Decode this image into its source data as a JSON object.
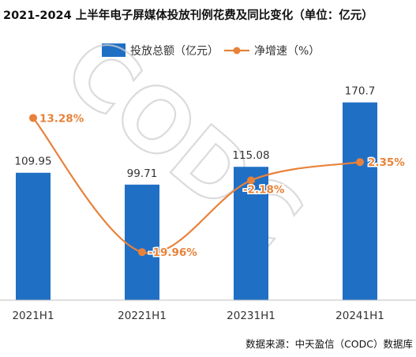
{
  "chart_data": {
    "type": "bar",
    "title": "2021-2024 上半年电子屏媒体投放刊例花费及同比变化（单位：亿元）",
    "categories": [
      "2021H1",
      "20221H1",
      "20231H1",
      "20241H1"
    ],
    "series": [
      {
        "name": "投放总额（亿元）",
        "type": "bar",
        "values": [
          109.95,
          99.71,
          115.08,
          170.7
        ],
        "labels": [
          "109.95",
          "99.71",
          "115.08",
          "170.7"
        ],
        "color": "#1f6fc5"
      },
      {
        "name": "净增速（%）",
        "type": "line",
        "values": [
          13.28,
          -19.96,
          -2.18,
          2.35
        ],
        "labels": [
          "13.28%",
          "-19.96%",
          "-2.18%",
          "2.35%"
        ],
        "color": "#e8823a"
      }
    ],
    "ylim_bar": [
      0,
      180
    ],
    "ylim_line": [
      -25,
      20
    ],
    "legend_position": "top",
    "grid": false,
    "watermark": "CODC"
  },
  "source": "数据来源：中天盈信（CODC）数据库"
}
